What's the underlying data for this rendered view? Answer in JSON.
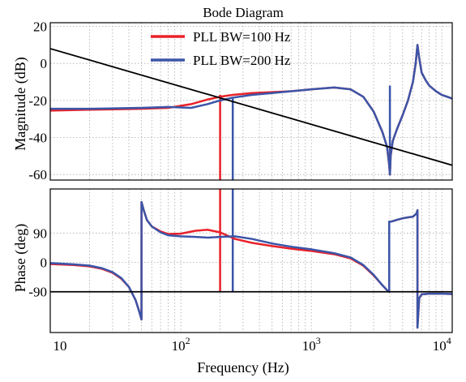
{
  "chart_data": {
    "type": "line",
    "title": "Bode Diagram",
    "xlabel": "Frequency (Hz)",
    "x_scale": "log",
    "xlim": [
      10,
      12000
    ],
    "x_ticks": [
      {
        "value": 10,
        "base": "10",
        "exp": ""
      },
      {
        "value": 100,
        "base": "10",
        "exp": "2"
      },
      {
        "value": 1000,
        "base": "10",
        "exp": "3"
      },
      {
        "value": 10000,
        "base": "10",
        "exp": "4"
      }
    ],
    "grid": true,
    "legend_position": "top-center",
    "panels": [
      {
        "id": "magnitude",
        "ylabel": "Magnitude (dB)",
        "ylim": [
          -63,
          22
        ],
        "y_ticks": [
          "20",
          "0",
          "-20",
          "-40",
          "-60"
        ],
        "y_tick_values": [
          20,
          0,
          -20,
          -40,
          -60
        ],
        "series": [
          {
            "name": "PLL BW=100 Hz",
            "color": "#e8222a",
            "x": [
              10,
              20,
              50,
              80,
              120,
              160,
              200,
              250,
              350,
              500,
              700,
              1000,
              1500,
              2000,
              2500,
              3000,
              3500,
              3800,
              3950,
              4000,
              4050,
              4200,
              4500,
              5000,
              5500,
              6000,
              6300,
              6500,
              6700,
              7000,
              7500,
              8000,
              9000,
              10000,
              11000,
              12000
            ],
            "y": [
              -25.5,
              -25,
              -24.5,
              -24,
              -22,
              -19.5,
              -18,
              -17,
              -16,
              -15.5,
              -15,
              -14,
              -13,
              -14,
              -18,
              -26,
              -37,
              -45,
              -55,
              -60,
              -50,
              -42,
              -36,
              -28,
              -20,
              -10,
              0,
              10,
              3,
              -5,
              -9,
              -12,
              -15,
              -17,
              -18,
              -19
            ]
          },
          {
            "name": "PLL BW=200 Hz",
            "color": "#3b55a8",
            "x": [
              10,
              20,
              50,
              80,
              120,
              160,
              200,
              250,
              350,
              500,
              700,
              1000,
              1500,
              2000,
              2500,
              3000,
              3500,
              3800,
              3950,
              4000,
              4050,
              4200,
              4500,
              5000,
              5500,
              6000,
              6300,
              6500,
              6700,
              7000,
              7500,
              8000,
              9000,
              10000,
              11000,
              12000
            ],
            "y": [
              -24.5,
              -24.5,
              -24,
              -23.5,
              -24,
              -22,
              -20,
              -18.5,
              -17,
              -16,
              -15,
              -14,
              -13,
              -14,
              -18,
              -26,
              -37,
              -45,
              -55,
              -60,
              -50,
              -42,
              -36,
              -28,
              -20,
              -10,
              0,
              10,
              3,
              -5,
              -9,
              -12,
              -15,
              -17,
              -18,
              -19
            ]
          },
          {
            "name": "",
            "color": "#000000",
            "x": [
              10,
              12000
            ],
            "y": [
              8,
              -55
            ]
          }
        ],
        "markers": [
          {
            "x": 200,
            "color": "#e8222a",
            "from": -17,
            "to": -63
          },
          {
            "x": 250,
            "color": "#3b55a8",
            "from": -19,
            "to": -63
          },
          {
            "x": 4000,
            "color": "#3b55a8",
            "from": -59,
            "to": -12
          }
        ]
      },
      {
        "id": "phase",
        "ylabel": "Phase (deg)",
        "ylim": [
          -215,
          225
        ],
        "y_ticks": [
          "90",
          "0",
          "-90"
        ],
        "y_tick_values": [
          90,
          0,
          -90
        ],
        "series": [
          {
            "name": "PLL BW=100 Hz",
            "color": "#e8222a",
            "x": [
              10,
              15,
              20,
              25,
              30,
              35,
              40,
              45,
              48,
              50,
              50.01,
              52,
              55,
              60,
              70,
              80,
              100,
              130,
              160,
              200,
              260,
              350,
              500,
              700,
              1000,
              1500,
              2000,
              2500,
              3000,
              3500,
              3800,
              3950,
              3950.01,
              4100,
              4500,
              5000,
              5500,
              6000,
              6400,
              6500,
              6500.01,
              6700,
              7000,
              8000,
              10000,
              12000
            ],
            "y": [
              -5,
              -8,
              -12,
              -20,
              -32,
              -50,
              -75,
              -115,
              -150,
              -175,
              185,
              160,
              130,
              110,
              95,
              87,
              88,
              97,
              100,
              92,
              72,
              60,
              50,
              42,
              35,
              25,
              12,
              -10,
              -40,
              -70,
              -85,
              -90,
              125,
              125,
              130,
              135,
              138,
              140,
              150,
              160,
              -200,
              -110,
              -98,
              -96,
              -96,
              -97
            ]
          },
          {
            "name": "PLL BW=200 Hz",
            "color": "#3b55a8",
            "x": [
              10,
              15,
              20,
              25,
              30,
              35,
              40,
              45,
              48,
              50,
              50.01,
              52,
              55,
              60,
              70,
              80,
              100,
              130,
              160,
              200,
              260,
              350,
              500,
              700,
              1000,
              1500,
              2000,
              2500,
              3000,
              3500,
              3800,
              3950,
              3950.01,
              4100,
              4500,
              5000,
              5500,
              6000,
              6400,
              6500,
              6500.01,
              6700,
              7000,
              8000,
              10000,
              12000
            ],
            "y": [
              -2,
              -6,
              -10,
              -18,
              -30,
              -48,
              -75,
              -115,
              -150,
              -175,
              185,
              160,
              130,
              110,
              92,
              83,
              80,
              78,
              76,
              78,
              80,
              72,
              58,
              48,
              40,
              28,
              15,
              -8,
              -38,
              -70,
              -85,
              -90,
              125,
              125,
              130,
              135,
              138,
              140,
              150,
              160,
              -200,
              -110,
              -98,
              -96,
              -96,
              -97
            ]
          },
          {
            "name": "",
            "color": "#000000",
            "x": [
              10,
              12000
            ],
            "y": [
              -90,
              -90
            ]
          }
        ],
        "markers": [
          {
            "x": 200,
            "color": "#e8222a",
            "from": -90,
            "to": 225
          },
          {
            "x": 250,
            "color": "#3b55a8",
            "from": -90,
            "to": 225
          }
        ]
      }
    ]
  }
}
